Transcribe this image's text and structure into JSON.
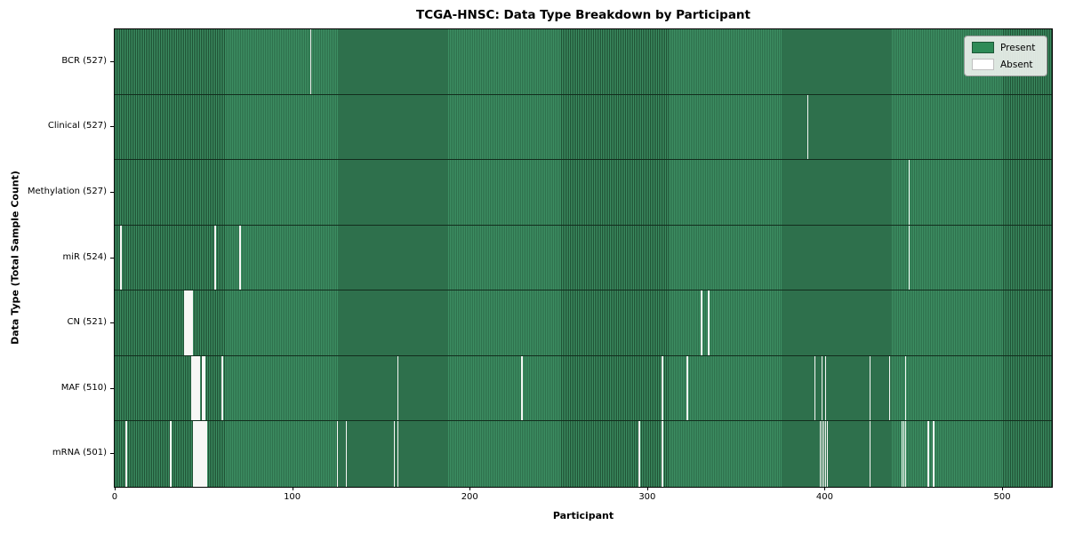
{
  "title": "TCGA-HNSC: Data Type Breakdown by Participant",
  "xlabel": "Participant",
  "ylabel": "Data Type (Total Sample Count)",
  "legend": {
    "present_label": "Present",
    "absent_label": "Absent"
  },
  "colors": {
    "present": "#2e8b57",
    "present_stripe_dark": "#1f5134",
    "absent": "#ffffff"
  },
  "chart_data": {
    "type": "heatmap",
    "title": "TCGA-HNSC: Data Type Breakdown by Participant",
    "xlabel": "Participant",
    "ylabel": "Data Type (Total Sample Count)",
    "n_participants": 528,
    "xlim": [
      -0.5,
      527.5
    ],
    "x_ticks": [
      0,
      100,
      200,
      300,
      400,
      500
    ],
    "grid": false,
    "legend_position": "upper right",
    "legend": [
      {
        "label": "Present",
        "color": "#2e8b57"
      },
      {
        "label": "Absent",
        "color": "#ffffff"
      }
    ],
    "rows": [
      {
        "label": "BCR (527)",
        "data_type": "BCR",
        "total_samples": 527,
        "absent_participants": [
          110
        ]
      },
      {
        "label": "Clinical (527)",
        "data_type": "Clinical",
        "total_samples": 527,
        "absent_participants": [
          390
        ]
      },
      {
        "label": "Methylation (527)",
        "data_type": "Methylation",
        "total_samples": 527,
        "absent_participants": [
          447
        ]
      },
      {
        "label": "miR (524)",
        "data_type": "miR",
        "total_samples": 524,
        "absent_participants": [
          3,
          56,
          70,
          447
        ]
      },
      {
        "label": "CN (521)",
        "data_type": "CN",
        "total_samples": 521,
        "absent_participants": [
          39,
          40,
          41,
          42,
          43,
          330,
          334
        ]
      },
      {
        "label": "MAF (510)",
        "data_type": "MAF",
        "total_samples": 510,
        "absent_participants": [
          43,
          44,
          45,
          46,
          47,
          49,
          50,
          60,
          159,
          229,
          308,
          322,
          394,
          398,
          400,
          425,
          436,
          445
        ]
      },
      {
        "label": "mRNA (501)",
        "data_type": "mRNA",
        "total_samples": 501,
        "absent_participants": [
          6,
          31,
          44,
          45,
          46,
          47,
          48,
          49,
          50,
          51,
          125,
          130,
          157,
          159,
          295,
          308,
          397,
          398,
          399,
          400,
          401,
          425,
          443,
          444,
          445,
          458,
          461
        ]
      }
    ]
  }
}
